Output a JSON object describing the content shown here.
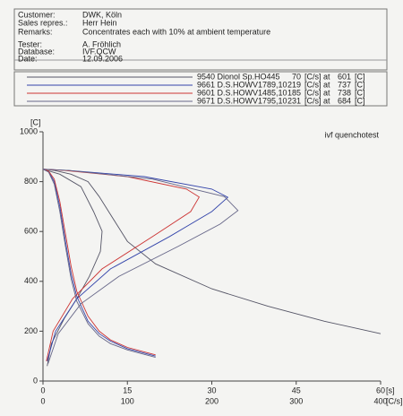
{
  "header": {
    "fields": [
      {
        "label": "Customer:",
        "value": "DWK, Köln"
      },
      {
        "label": "Sales repres.:",
        "value": "Herr Hein"
      },
      {
        "label": "Remarks:",
        "value": "Concentrates each with 10% at ambient temperature"
      },
      {
        "label": "Tester:",
        "value": "A. Fröhlich"
      },
      {
        "label": "Database:",
        "value": "IVF.QCW"
      },
      {
        "label": "Date:",
        "value": "12.09.2006"
      }
    ]
  },
  "chart_data": {
    "type": "line",
    "annotation": "ivf quenchotest",
    "rate_unit_label": "[C/s] at",
    "temp_unit_label": "[C]",
    "y_label": "[C]",
    "x_label": "[s]",
    "x2_label": "[C/s]",
    "ylim": [
      0,
      1000
    ],
    "yticks": [
      0,
      200,
      400,
      600,
      800,
      1000
    ],
    "xlim": [
      0,
      60
    ],
    "xticks": [
      0,
      15,
      30,
      45,
      60
    ],
    "x2lim": [
      0,
      400
    ],
    "x2ticks": [
      0,
      100,
      200,
      300,
      400
    ],
    "series": [
      {
        "name": "9540 Dionol Sp.HO445",
        "color": "#555566",
        "max_rate": 70,
        "max_rate_temp": 601,
        "x": [
          0,
          2,
          5,
          8,
          10,
          15,
          20,
          30,
          40,
          50,
          60
        ],
        "values": [
          850,
          845,
          830,
          800,
          740,
          560,
          470,
          370,
          300,
          240,
          190
        ],
        "rate_x": [
          0,
          20,
          45,
          60,
          70,
          68,
          55,
          40,
          25,
          10,
          5
        ],
        "rate_values": [
          850,
          830,
          780,
          680,
          601,
          520,
          420,
          330,
          250,
          150,
          60
        ]
      },
      {
        "name": "9661 D.S.HOWV1789,10",
        "color": "#3344aa",
        "max_rate": 219,
        "max_rate_temp": 737,
        "x": [
          0,
          1,
          2,
          3,
          4,
          5,
          6,
          8,
          10,
          12,
          15,
          20
        ],
        "values": [
          850,
          840,
          800,
          700,
          560,
          430,
          340,
          240,
          190,
          160,
          130,
          100
        ],
        "rate_x": [
          0,
          30,
          120,
          200,
          219,
          200,
          150,
          80,
          40,
          15,
          5
        ],
        "rate_values": [
          850,
          845,
          820,
          770,
          737,
          680,
          580,
          450,
          330,
          200,
          80
        ]
      },
      {
        "name": "9601 D.S.HOWV1485,10",
        "color": "#cc3333",
        "max_rate": 185,
        "max_rate_temp": 738,
        "x": [
          0,
          1,
          2,
          3,
          4,
          5,
          6,
          8,
          10,
          12,
          15,
          20
        ],
        "values": [
          850,
          842,
          810,
          720,
          590,
          460,
          360,
          260,
          200,
          165,
          135,
          105
        ],
        "rate_x": [
          0,
          25,
          100,
          170,
          185,
          175,
          130,
          70,
          35,
          12,
          4
        ],
        "rate_values": [
          850,
          845,
          820,
          770,
          738,
          680,
          580,
          450,
          330,
          200,
          80
        ]
      },
      {
        "name": "9671 D.S.HOWV1795,10",
        "color": "#666688",
        "max_rate": 231,
        "max_rate_temp": 684,
        "x": [
          0,
          1,
          2,
          3,
          4,
          5,
          6,
          8,
          10,
          12,
          15,
          20
        ],
        "values": [
          850,
          838,
          790,
          680,
          540,
          410,
          320,
          230,
          180,
          150,
          125,
          95
        ],
        "rate_x": [
          0,
          30,
          130,
          215,
          231,
          210,
          160,
          90,
          45,
          18,
          6
        ],
        "rate_values": [
          850,
          845,
          810,
          740,
          684,
          630,
          540,
          420,
          310,
          190,
          70
        ]
      }
    ]
  }
}
